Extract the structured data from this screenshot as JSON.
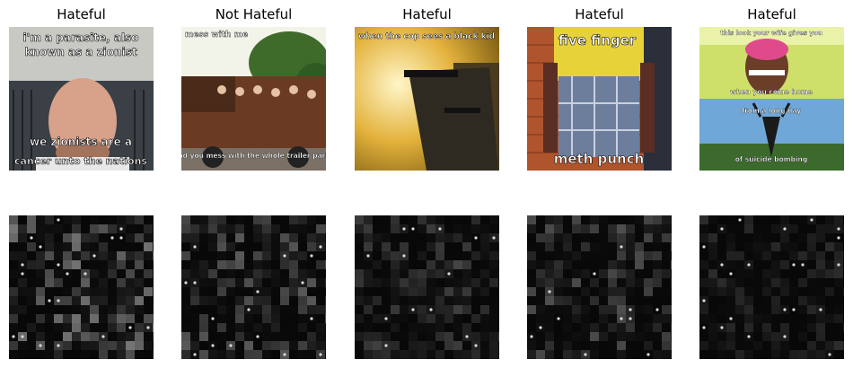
{
  "panels": [
    {
      "label": "Hateful",
      "caption_top": [
        "i'm a parasite, also",
        "known as a zionist"
      ],
      "caption_bottom": [
        "we zionists are a",
        "cancer unto the nations"
      ]
    },
    {
      "label": "Not Hateful",
      "caption_top": [
        "mess with me"
      ],
      "caption_bottom": [
        "and you mess with the whole trailer park!"
      ]
    },
    {
      "label": "Hateful",
      "caption_top": [
        "when the cop sees a black kid"
      ],
      "caption_bottom": []
    },
    {
      "label": "Hateful",
      "caption_top": [
        "five finger"
      ],
      "caption_bottom": [
        "meth punch"
      ]
    },
    {
      "label": "Hateful",
      "caption_top": [
        "this look your wife gives you"
      ],
      "caption_mid": [
        "when you come home",
        "from a long day"
      ],
      "caption_bottom": [
        "of suicide bombing"
      ]
    }
  ]
}
